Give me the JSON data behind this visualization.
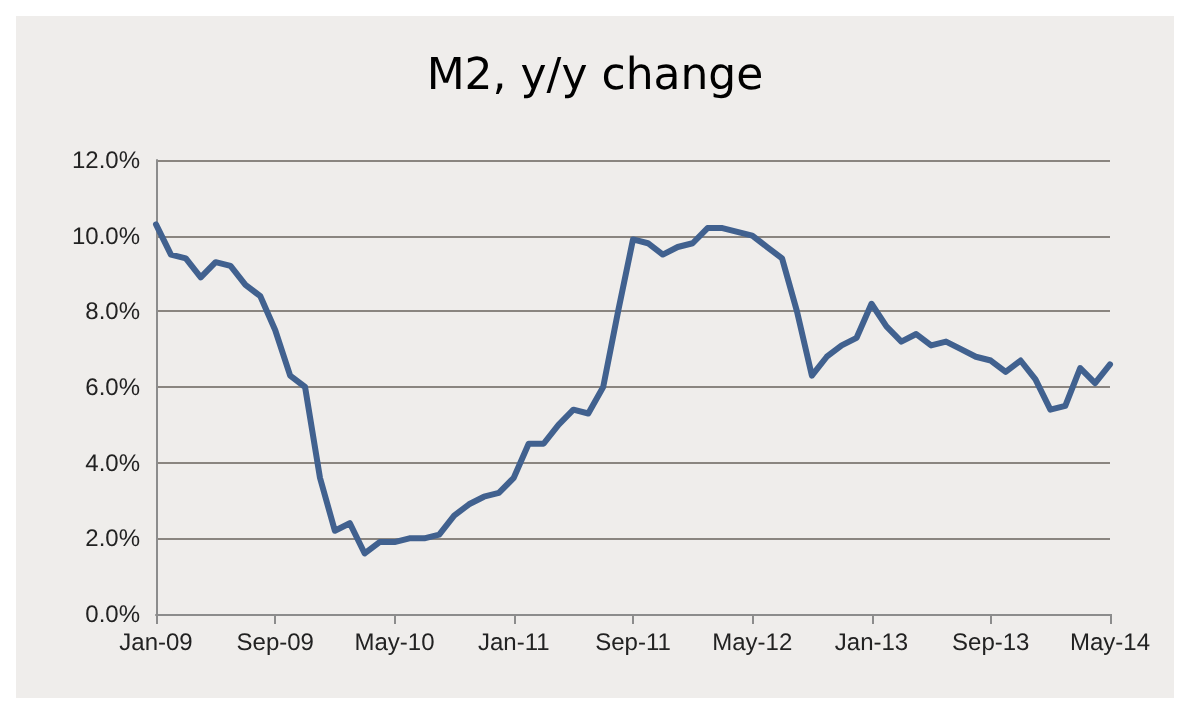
{
  "chart_data": {
    "type": "line",
    "title": "M2, y/y change",
    "categories": [
      "Jan-09",
      null,
      null,
      null,
      null,
      null,
      null,
      null,
      "Sep-09",
      null,
      null,
      null,
      null,
      null,
      null,
      null,
      "May-10",
      null,
      null,
      null,
      null,
      null,
      null,
      null,
      "Jan-11",
      null,
      null,
      null,
      null,
      null,
      null,
      null,
      "Sep-11",
      null,
      null,
      null,
      null,
      null,
      null,
      null,
      "May-12",
      null,
      null,
      null,
      null,
      null,
      null,
      null,
      "Jan-13",
      null,
      null,
      null,
      null,
      null,
      null,
      null,
      "Sep-13",
      null,
      null,
      null,
      null,
      null,
      null,
      null,
      "May-14"
    ],
    "series": [
      {
        "color": "#41618f",
        "values": [
          10.3,
          9.5,
          9.4,
          8.9,
          9.3,
          9.2,
          8.7,
          8.4,
          7.5,
          6.3,
          6.0,
          3.6,
          2.2,
          2.4,
          1.6,
          1.9,
          1.9,
          2.0,
          2.0,
          2.1,
          2.6,
          2.9,
          3.1,
          3.2,
          3.6,
          4.5,
          4.5,
          5.0,
          5.4,
          5.3,
          6.0,
          8.0,
          9.9,
          9.8,
          9.5,
          9.7,
          9.8,
          10.2,
          10.2,
          10.1,
          10.0,
          9.7,
          9.4,
          8.0,
          6.3,
          6.8,
          7.1,
          7.3,
          8.2,
          7.6,
          7.2,
          7.4,
          7.1,
          7.2,
          7.0,
          6.8,
          6.7,
          6.4,
          6.7,
          6.2,
          5.4,
          5.5,
          6.5,
          6.1,
          6.6
        ]
      }
    ],
    "ylim": [
      0,
      12
    ],
    "yticks": [
      {
        "value": 0,
        "label": "0.0%"
      },
      {
        "value": 2,
        "label": "2.0%"
      },
      {
        "value": 4,
        "label": "4.0%"
      },
      {
        "value": 6,
        "label": "6.0%"
      },
      {
        "value": 8,
        "label": "8.0%"
      },
      {
        "value": 10,
        "label": "10.0%"
      },
      {
        "value": 12,
        "label": "12.0%"
      }
    ],
    "grid": "y",
    "marker": "none",
    "line_style": "solid"
  }
}
